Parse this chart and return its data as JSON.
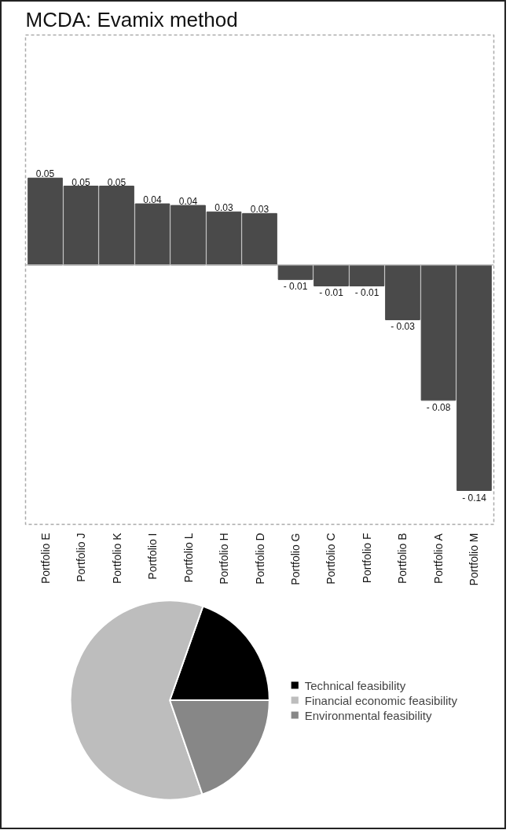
{
  "chart_data": [
    {
      "type": "bar",
      "title": "MCDA: Evamix method",
      "categories": [
        "Portfolio E",
        "Portfolio J",
        "Portfolio K",
        "Portfolio I",
        "Portfolio L",
        "Portfolio H",
        "Portfolio D",
        "Portfolio G",
        "Portfolio C",
        "Portfolio F",
        "Portfolio B",
        "Portfolio A",
        "Portfolio M"
      ],
      "values": [
        0.054,
        0.049,
        0.049,
        0.038,
        0.037,
        0.033,
        0.032,
        -0.009,
        -0.013,
        -0.013,
        -0.034,
        -0.084,
        -0.14
      ],
      "value_labels": [
        "0.05",
        "0.05",
        "0.05",
        "0.04",
        "0.04",
        "0.03",
        "0.03",
        "- 0.01",
        "- 0.01",
        "- 0.01",
        "- 0.03",
        "- 0.08",
        "- 0.14"
      ],
      "color": "#4a4a4a",
      "grid": false,
      "tick_labels": "x"
    },
    {
      "type": "pie",
      "categories": [
        "Technical feasibility",
        "Financial economic feasibility",
        "Environmental feasibility"
      ],
      "values": [
        19.6,
        60.7,
        19.7
      ],
      "colors": [
        "#000000",
        "#bdbdbd",
        "#878787"
      ],
      "legend": "right"
    }
  ]
}
